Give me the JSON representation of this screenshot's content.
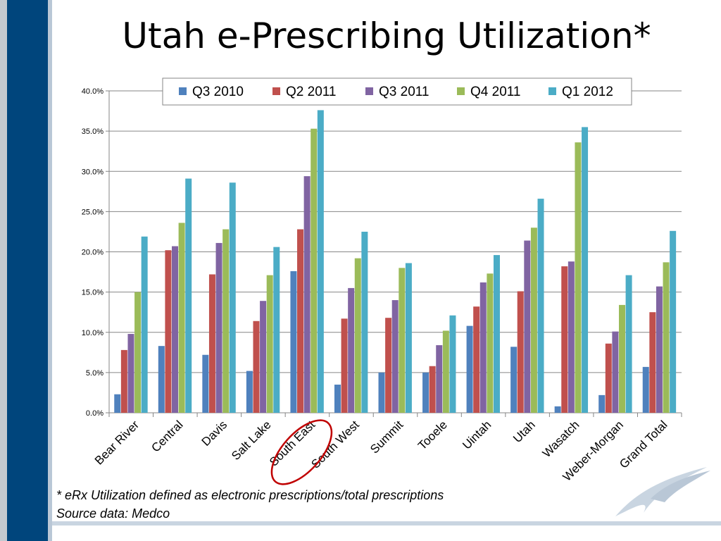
{
  "slide": {
    "title": "Utah e-Prescribing Utilization*",
    "footnote": "* eRx Utilization defined as electronic prescriptions/total prescriptions",
    "source": "Source data: Medco"
  },
  "colors": {
    "sidebar": "#00457c",
    "highlight_circle": "#c00000"
  },
  "annotations": {
    "highlighted_category": "South East"
  },
  "chart_data": {
    "type": "bar",
    "title": "",
    "xlabel": "",
    "ylabel": "",
    "ylim": [
      0,
      40
    ],
    "yticks": [
      "0.0%",
      "5.0%",
      "10.0%",
      "15.0%",
      "20.0%",
      "25.0%",
      "30.0%",
      "35.0%",
      "40.0%"
    ],
    "grid": true,
    "legend_position": "top",
    "categories": [
      "Bear River",
      "Central",
      "Davis",
      "Salt Lake",
      "South East",
      "South West",
      "Summit",
      "Tooele",
      "Uintah",
      "Utah",
      "Wasatch",
      "Weber-Morgan",
      "Grand Total"
    ],
    "series": [
      {
        "name": "Q3 2010",
        "color": "#4f81bd",
        "values": [
          2.3,
          8.3,
          7.2,
          5.2,
          17.6,
          3.5,
          5.0,
          5.0,
          10.8,
          8.2,
          0.8,
          2.2,
          5.7
        ]
      },
      {
        "name": "Q2 2011",
        "color": "#c0504d",
        "values": [
          7.8,
          20.2,
          17.2,
          11.4,
          22.8,
          11.7,
          11.8,
          5.8,
          13.2,
          15.1,
          18.2,
          8.6,
          12.5
        ]
      },
      {
        "name": "Q3 2011",
        "color": "#8064a2",
        "values": [
          9.8,
          20.7,
          21.1,
          13.9,
          29.4,
          15.5,
          14.0,
          8.4,
          16.2,
          21.4,
          18.8,
          10.1,
          15.7
        ]
      },
      {
        "name": "Q4 2011",
        "color": "#9bbb59",
        "values": [
          15.0,
          23.6,
          22.8,
          17.1,
          35.3,
          19.2,
          18.0,
          10.2,
          17.3,
          23.0,
          33.6,
          13.4,
          18.7
        ]
      },
      {
        "name": "Q1 2012",
        "color": "#4bacc6",
        "values": [
          21.9,
          29.1,
          28.6,
          20.6,
          37.6,
          22.5,
          18.6,
          12.1,
          19.6,
          26.6,
          35.5,
          17.1,
          22.6
        ]
      }
    ]
  }
}
